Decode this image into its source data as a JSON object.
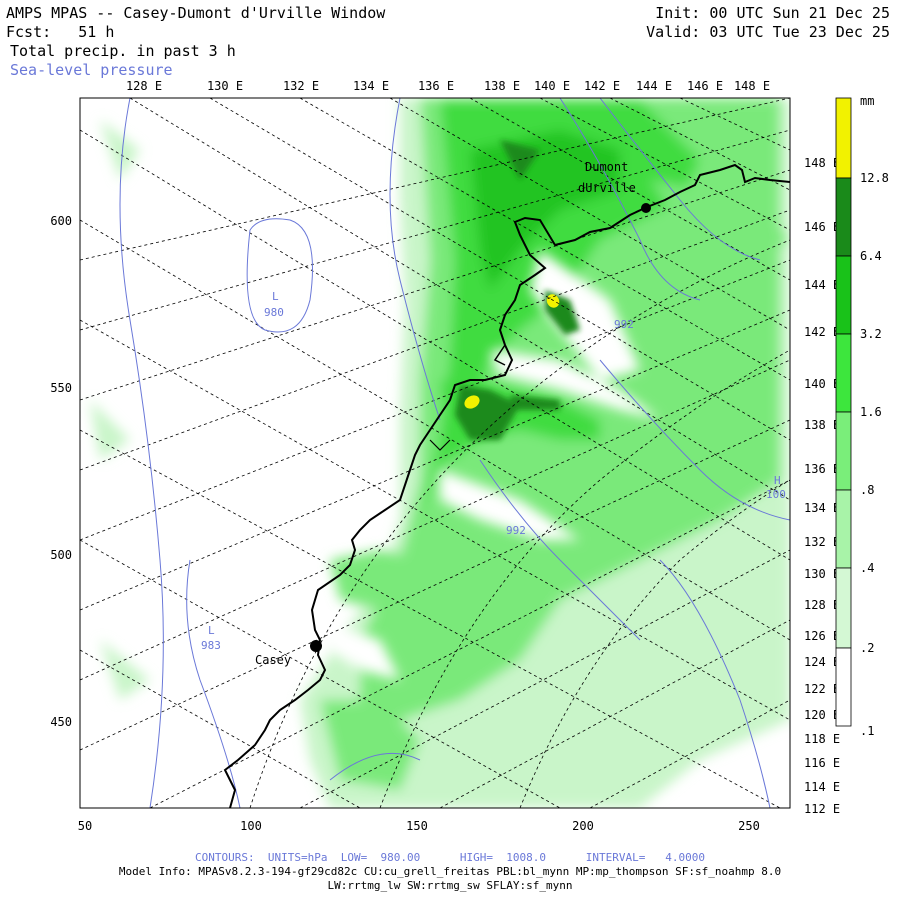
{
  "header": {
    "title": "AMPS MPAS -- Casey-Dumont d'Urville Window",
    "forecast_label": "Fcst:",
    "forecast_value": "51 h",
    "init": "Init: 00 UTC Sun 21 Dec 25",
    "valid": "Valid: 03 UTC Tue 23 Dec 25",
    "field1": "Total precip. in past 3 h",
    "field2": "Sea-level pressure"
  },
  "map": {
    "top_longitude_labels": [
      "128 E",
      "130 E",
      "132 E",
      "134 E",
      "136 E",
      "138 E",
      "140 E",
      "142 E",
      "144 E",
      "146 E",
      "148 E"
    ],
    "right_longitude_labels": [
      "148 E",
      "146 E",
      "144 E",
      "142 E",
      "140 E",
      "138 E",
      "136 E",
      "134 E",
      "132 E",
      "130 E",
      "128 E",
      "126 E",
      "124 E",
      "122 E",
      "120 E",
      "118 E",
      "116 E",
      "114 E",
      "112 E"
    ],
    "x_axis_ticks": [
      "50",
      "100",
      "150",
      "200",
      "250"
    ],
    "y_axis_ticks": [
      "600",
      "550",
      "500",
      "450"
    ],
    "pressure_labels": [
      {
        "text": "L",
        "x": 110,
        "y": 573
      },
      {
        "text": "980",
        "x": 110,
        "y": 564
      },
      {
        "text": "992",
        "x": 212,
        "y": 560
      },
      {
        "text": "992",
        "x": 180,
        "y": 508
      },
      {
        "text": "H",
        "x": 257,
        "y": 521
      },
      {
        "text": "100",
        "x": 257,
        "y": 513
      },
      {
        "text": "L",
        "x": 88,
        "y": 488
      },
      {
        "text": "983",
        "x": 88,
        "y": 480
      }
    ],
    "stations": [
      {
        "name": "Dumont",
        "x": 218,
        "y": 609
      },
      {
        "name": "dUrville",
        "x": 218,
        "y": 604
      },
      {
        "name": "Casey",
        "x": 120,
        "y": 472
      }
    ]
  },
  "colorbar": {
    "unit": "mm",
    "levels": [
      "12.8",
      "6.4",
      "3.2",
      "1.6",
      ".8",
      ".4",
      ".2",
      ".1"
    ],
    "colors": [
      "#f2f200",
      "#1a8a1a",
      "#19c219",
      "#3de63d",
      "#7aee7a",
      "#a8f3a8",
      "#d4f8d4",
      "#ffffff"
    ]
  },
  "footer": {
    "contours": "CONTOURS:  UNITS=hPa  LOW=  980.00      HIGH=  1008.0      INTERVAL=   4.0000",
    "model_info_1": "Model Info: MPASv8.2.3-194-gf29cd82c CU:cu_grell_freitas PBL:bl_mynn MP:mp_thompson SF:sf_noahmp 8.0",
    "model_info_2": "LW:rrtmg_lw SW:rrtmg_sw SFLAY:sf_mynn"
  }
}
